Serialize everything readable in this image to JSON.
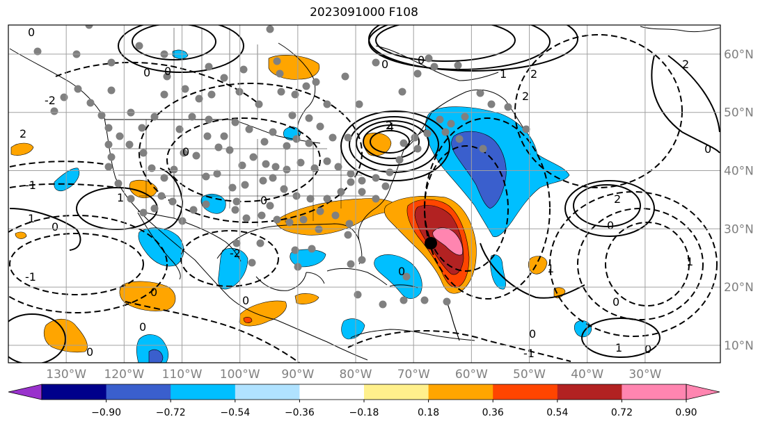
{
  "title": "2023091000 F108",
  "map": {
    "projection": "PlateCarree",
    "lon_range": [
      -140,
      -17
    ],
    "lat_range": [
      7,
      65
    ],
    "lon_ticks": [
      {
        "value": -130,
        "label": "130°W"
      },
      {
        "value": -120,
        "label": "120°W"
      },
      {
        "value": -110,
        "label": "110°W"
      },
      {
        "value": -100,
        "label": "100°W"
      },
      {
        "value": -90,
        "label": "90°W"
      },
      {
        "value": -80,
        "label": "80°W"
      },
      {
        "value": -70,
        "label": "70°W"
      },
      {
        "value": -60,
        "label": "60°W"
      },
      {
        "value": -50,
        "label": "50°W"
      },
      {
        "value": -40,
        "label": "40°W"
      },
      {
        "value": -30,
        "label": "30°W"
      }
    ],
    "lat_ticks": [
      {
        "value": 60,
        "label": "60°N"
      },
      {
        "value": 50,
        "label": "50°N"
      },
      {
        "value": 40,
        "label": "40°N"
      },
      {
        "value": 30,
        "label": "30°N"
      },
      {
        "value": 20,
        "label": "20°N"
      },
      {
        "value": 10,
        "label": "10°N"
      }
    ],
    "grid": true,
    "storm_center": {
      "lon": -68.5,
      "lat": 28.5
    },
    "contour_labels": [
      "0",
      "1",
      "2",
      "4",
      "-1",
      "-2"
    ]
  },
  "colorbar": {
    "ticks": [
      "−0.90",
      "−0.72",
      "−0.54",
      "−0.36",
      "−0.18",
      "0.18",
      "0.36",
      "0.54",
      "0.72",
      "0.90"
    ],
    "colors": [
      "#9932cc",
      "#00008b",
      "#3a5fcd",
      "#00bfff",
      "#b0e2ff",
      "#ffffff",
      "#fff08c",
      "#ffa500",
      "#ff4500",
      "#b22222",
      "#ff85b0",
      "#ff85b0"
    ],
    "extend": "both"
  },
  "palette": {
    "pos_light": "#fff08c",
    "pos_orange": "#ffa500",
    "pos_red": "#ff4500",
    "pos_darkred": "#b22222",
    "pos_pink": "#ff85b0",
    "neg_light": "#b0e2ff",
    "neg_cyan": "#00bfff",
    "neg_blue": "#3a5fcd",
    "station_color": "#808080"
  }
}
